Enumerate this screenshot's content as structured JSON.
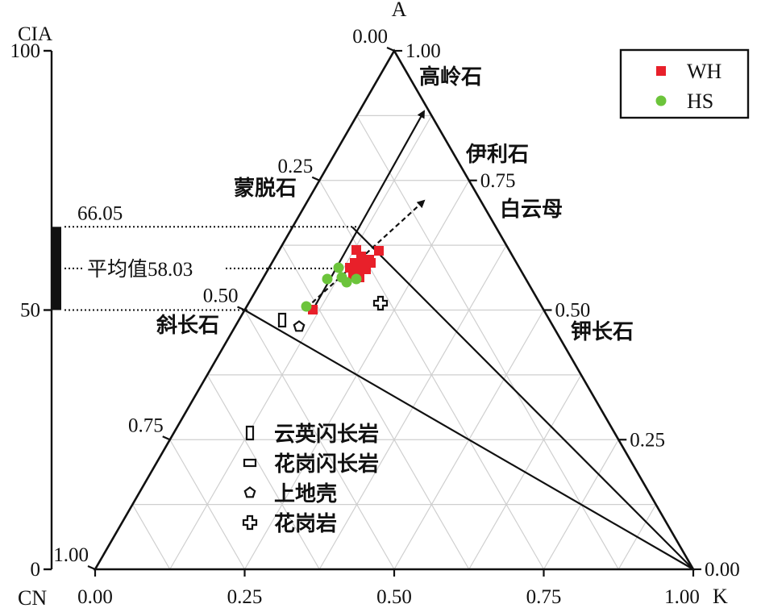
{
  "chart_data": {
    "type": "scatter",
    "subtype": "ternary A-CN-K diagram with CIA scale",
    "vertices": {
      "top": "A",
      "left": "CN",
      "right": "K"
    },
    "cia_axis": {
      "label": "CIA",
      "range": [
        0,
        100
      ],
      "ticks": [
        {
          "value": 0,
          "label": "0"
        },
        {
          "value": 50,
          "label": "50"
        },
        {
          "value": 100,
          "label": "100"
        }
      ],
      "bar_range": [
        50,
        66.05
      ]
    },
    "edge_ticks": {
      "bottom": [
        "0.00",
        "0.25",
        "0.50",
        "0.75",
        "1.00"
      ],
      "left": [
        "0.00",
        "0.25",
        "0.50",
        "0.75",
        "1.00"
      ],
      "right": [
        "1.00",
        "0.75",
        "0.50",
        "0.25",
        "0.00"
      ]
    },
    "reference_lines": [
      {
        "label": "66.05",
        "cia": 66.05
      },
      {
        "label": "平均值58.03",
        "cia": 58.03
      },
      {
        "label": "",
        "cia": 50
      }
    ],
    "minerals": [
      {
        "name": "高岭石",
        "A": 1.0,
        "K": 0.0
      },
      {
        "name": "伊利石",
        "A": 0.85,
        "K": 0.15
      },
      {
        "name": "白云母",
        "A": 0.75,
        "K": 0.25
      },
      {
        "name": "蒙脱石",
        "A": 0.75,
        "K": 0.0
      },
      {
        "name": "斜长石",
        "A": 0.5,
        "K": 0.0
      },
      {
        "name": "钾长石",
        "A": 0.5,
        "K": 0.5
      }
    ],
    "series": [
      {
        "name": "WH",
        "marker": "square",
        "color": "#e8202a",
        "points": [
          {
            "A": 0.625,
            "K": 0.13
          },
          {
            "A": 0.615,
            "K": 0.15
          },
          {
            "A": 0.615,
            "K": 0.175
          },
          {
            "A": 0.6,
            "K": 0.14
          },
          {
            "A": 0.6,
            "K": 0.155
          },
          {
            "A": 0.595,
            "K": 0.17
          },
          {
            "A": 0.59,
            "K": 0.13
          },
          {
            "A": 0.585,
            "K": 0.145
          },
          {
            "A": 0.58,
            "K": 0.165
          },
          {
            "A": 0.585,
            "K": 0.185
          },
          {
            "A": 0.575,
            "K": 0.155
          },
          {
            "A": 0.6,
            "K": 0.18
          },
          {
            "A": 0.505,
            "K": 0.05
          }
        ]
      },
      {
        "name": "HS",
        "marker": "circle",
        "color": "#6cc43b",
        "points": [
          {
            "A": 0.595,
            "K": 0.11
          },
          {
            "A": 0.575,
            "K": 0.085
          },
          {
            "A": 0.58,
            "K": 0.12
          },
          {
            "A": 0.565,
            "K": 0.14
          },
          {
            "A": 0.57,
            "K": 0.155
          },
          {
            "A": 0.51,
            "K": 0.06
          }
        ]
      }
    ],
    "reference_points": [
      {
        "name": "云英闪长岩",
        "marker": "tall-rect",
        "A": 0.485,
        "K": 0.02
      },
      {
        "name": "花岗闪长岩",
        "marker": "wide-rect",
        "A": 0.0,
        "K": 0.0,
        "legend_only": true
      },
      {
        "name": "上地壳",
        "marker": "pentagon",
        "A": 0.47,
        "K": 0.06
      },
      {
        "name": "花岗岩",
        "marker": "cross",
        "A": 0.515,
        "K": 0.18
      }
    ],
    "trend_lines": [
      {
        "style": "solid",
        "from": {
          "A": 0.5,
          "K": 0.04
        },
        "to": {
          "A": 0.86,
          "K": 0.04
        }
      },
      {
        "style": "dashed",
        "from": {
          "A": 0.51,
          "K": 0.06
        },
        "to": {
          "A": 0.73,
          "K": 0.12
        }
      }
    ],
    "legend": {
      "position": "top-right",
      "entries": [
        "WH",
        "HS"
      ]
    },
    "grid": true
  }
}
